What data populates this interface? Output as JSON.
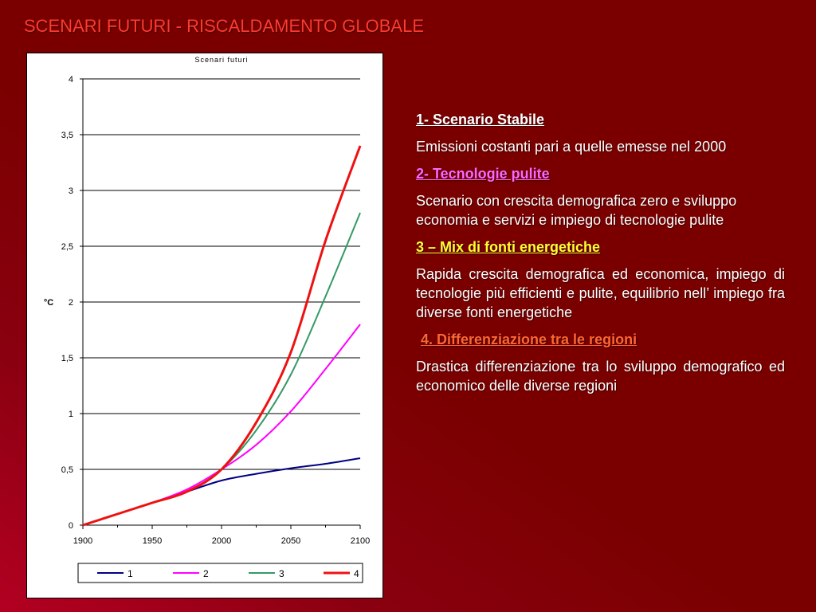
{
  "slide": {
    "title": "SCENARI FUTURI - RISCALDAMENTO GLOBALE"
  },
  "colors": {
    "s1": "#000080",
    "s2": "#ff00ff",
    "s3": "#339966",
    "s4": "#ee1111"
  },
  "chart_data": {
    "type": "line",
    "title": "Scenari futuri",
    "ylabel": "°C",
    "xlabel": "",
    "x": [
      1900,
      1925,
      1950,
      1975,
      2000,
      2025,
      2050,
      2075,
      2100
    ],
    "xticks": [
      "1900",
      "1950",
      "2000",
      "2050",
      "2100"
    ],
    "yticks": [
      "0",
      "0,5",
      "1",
      "1,5",
      "2",
      "2,5",
      "3",
      "3,5",
      "4"
    ],
    "xlim": [
      1900,
      2100
    ],
    "ylim": [
      0,
      4
    ],
    "grid": "horizontal",
    "legend": "bottom",
    "series": [
      {
        "name": "1",
        "values": [
          0,
          0.1,
          0.2,
          0.3,
          0.4,
          0.46,
          0.51,
          0.55,
          0.6
        ]
      },
      {
        "name": "2",
        "values": [
          0,
          0.1,
          0.2,
          0.32,
          0.5,
          0.72,
          1.02,
          1.4,
          1.8
        ]
      },
      {
        "name": "3",
        "values": [
          0,
          0.1,
          0.2,
          0.3,
          0.5,
          0.85,
          1.35,
          2.05,
          2.8
        ]
      },
      {
        "name": "4",
        "values": [
          0,
          0.1,
          0.2,
          0.3,
          0.5,
          0.92,
          1.55,
          2.55,
          3.4
        ]
      }
    ]
  },
  "panel": {
    "s1_heading": "1- Scenario Stabile",
    "s1_text": "Emissioni costanti pari a quelle emesse nel 2000",
    "s2_heading": "2- Tecnologie pulite",
    "s2_text": "Scenario con crescita demografica zero e sviluppo economia e servizi e impiego di tecnologie pulite",
    "s3_heading": "3 – Mix di fonti energetiche",
    "s3_text": "Rapida crescita demografica ed economica, impiego di tecnologie più efficienti e pulite, equilibrio nell’ impiego fra diverse fonti energetiche",
    "s4_heading": "4. Differenziazione tra le regioni",
    "s4_text": "Drastica differenziazione tra lo sviluppo demografico ed economico  delle diverse regioni"
  }
}
